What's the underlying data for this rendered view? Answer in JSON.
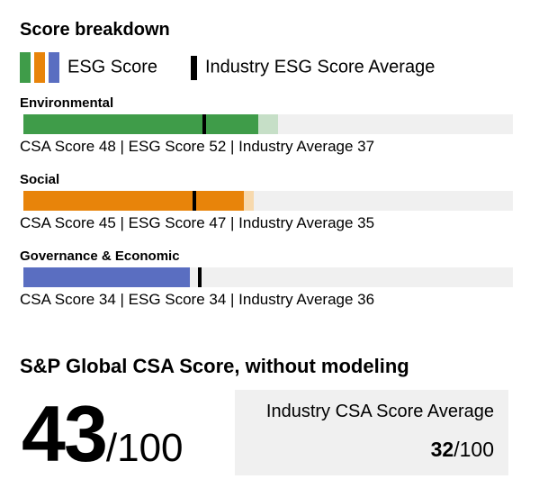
{
  "title": "Score breakdown",
  "legend": {
    "esg_label": "ESG Score",
    "industry_label": "Industry ESG Score Average"
  },
  "colors": {
    "track": "#f0f0f0",
    "marker": "#000000",
    "text": "#000000",
    "industry_box_bg": "#f0f0f0"
  },
  "chart_data": {
    "type": "bar",
    "scale_max": 100,
    "xlim": [
      0,
      100
    ],
    "legend_position": "top",
    "sections": [
      {
        "name": "Environmental",
        "csa_score": 48,
        "esg_score": 52,
        "industry_average": 37,
        "caption": "CSA Score 48 | ESG Score 52 | Industry Average 37",
        "color": "#3f9c49",
        "light_color": "#c6dfc7"
      },
      {
        "name": "Social",
        "csa_score": 45,
        "esg_score": 47,
        "industry_average": 35,
        "caption": "CSA Score 45 | ESG Score 47 | Industry Average 35",
        "color": "#e8840a",
        "light_color": "#f7d9ad"
      },
      {
        "name": "Governance & Economic",
        "csa_score": 34,
        "esg_score": 34,
        "industry_average": 36,
        "caption": "CSA Score 34 | ESG Score 34 | Industry Average 36",
        "color": "#5a6ec1",
        "light_color": "#c9d1ec"
      }
    ]
  },
  "summary": {
    "heading": "S&P Global CSA Score, without modeling",
    "score": "43",
    "score_suffix": "/100",
    "industry_box": {
      "label": "Industry CSA Score Average",
      "value": "32",
      "value_suffix": "/100"
    }
  }
}
